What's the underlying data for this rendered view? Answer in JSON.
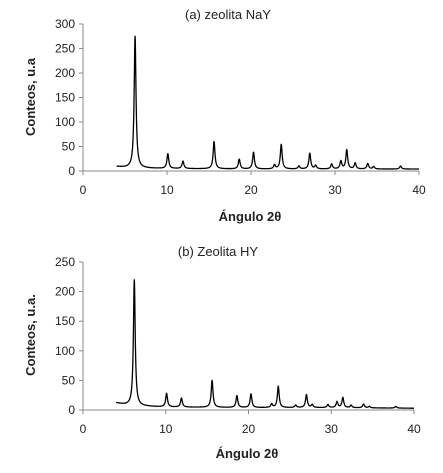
{
  "chart_data": [
    {
      "type": "line",
      "title": "(a) zeolita NaY",
      "xlabel": "Ángulo 2θ",
      "ylabel": "Conteos, u.a",
      "xlim": [
        0,
        40
      ],
      "ylim": [
        0,
        300
      ],
      "xticks": [
        0,
        10,
        20,
        30,
        40
      ],
      "yticks": [
        0,
        50,
        100,
        150,
        200,
        250,
        300
      ],
      "grid": false,
      "legend": "none",
      "line_color": "#000000",
      "baseline_start": 4,
      "baseline_end": 40,
      "baseline_values": [
        [
          4,
          9
        ],
        [
          5,
          7
        ],
        [
          6,
          6
        ],
        [
          10,
          5
        ],
        [
          20,
          4
        ],
        [
          30,
          4
        ],
        [
          40,
          4
        ]
      ],
      "peaks": [
        {
          "x": 6.2,
          "y": 275
        },
        {
          "x": 10.1,
          "y": 35
        },
        {
          "x": 11.9,
          "y": 20
        },
        {
          "x": 15.6,
          "y": 60
        },
        {
          "x": 18.6,
          "y": 24
        },
        {
          "x": 20.3,
          "y": 38
        },
        {
          "x": 22.8,
          "y": 12
        },
        {
          "x": 23.6,
          "y": 54
        },
        {
          "x": 25.7,
          "y": 10
        },
        {
          "x": 27.0,
          "y": 36
        },
        {
          "x": 27.7,
          "y": 11
        },
        {
          "x": 29.6,
          "y": 14
        },
        {
          "x": 30.7,
          "y": 20
        },
        {
          "x": 31.4,
          "y": 43
        },
        {
          "x": 32.4,
          "y": 16
        },
        {
          "x": 33.9,
          "y": 15
        },
        {
          "x": 34.6,
          "y": 9
        },
        {
          "x": 37.8,
          "y": 10
        }
      ]
    },
    {
      "type": "line",
      "title": "(b) Zeolita HY",
      "xlabel": "Ángulo 2θ",
      "ylabel": "Conteos, u.a.",
      "xlim": [
        0,
        40
      ],
      "ylim": [
        0,
        250
      ],
      "xticks": [
        0,
        10,
        20,
        30,
        40
      ],
      "yticks": [
        0,
        50,
        100,
        150,
        200,
        250
      ],
      "grid": false,
      "legend": "none",
      "line_color": "#000000",
      "baseline_start": 4,
      "baseline_end": 40,
      "baseline_values": [
        [
          4,
          12
        ],
        [
          5,
          9
        ],
        [
          6,
          7
        ],
        [
          10,
          5
        ],
        [
          20,
          4
        ],
        [
          30,
          4
        ],
        [
          40,
          3
        ]
      ],
      "peaks": [
        {
          "x": 6.2,
          "y": 220
        },
        {
          "x": 10.1,
          "y": 28
        },
        {
          "x": 11.9,
          "y": 20
        },
        {
          "x": 15.6,
          "y": 50
        },
        {
          "x": 18.6,
          "y": 24
        },
        {
          "x": 20.3,
          "y": 27
        },
        {
          "x": 22.8,
          "y": 10
        },
        {
          "x": 23.6,
          "y": 40
        },
        {
          "x": 25.7,
          "y": 8
        },
        {
          "x": 27.0,
          "y": 26
        },
        {
          "x": 27.7,
          "y": 9
        },
        {
          "x": 29.6,
          "y": 9
        },
        {
          "x": 30.7,
          "y": 14
        },
        {
          "x": 31.4,
          "y": 21
        },
        {
          "x": 32.4,
          "y": 8
        },
        {
          "x": 33.9,
          "y": 10
        },
        {
          "x": 34.6,
          "y": 6
        },
        {
          "x": 37.8,
          "y": 6
        }
      ]
    }
  ]
}
